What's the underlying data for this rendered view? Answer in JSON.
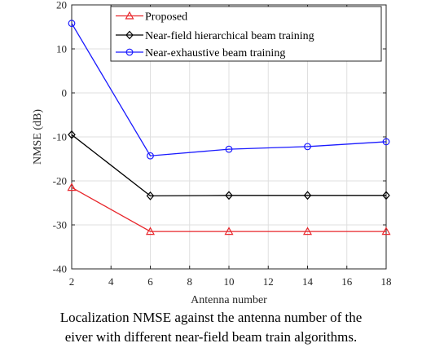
{
  "chart_data": {
    "type": "line",
    "xlabel": "Antenna number",
    "ylabel": "NMSE (dB)",
    "xlim": [
      2,
      18
    ],
    "ylim": [
      -40,
      20
    ],
    "xticks": [
      2,
      4,
      6,
      8,
      10,
      12,
      14,
      16,
      18
    ],
    "yticks": [
      -40,
      -30,
      -20,
      -10,
      0,
      10,
      20
    ],
    "grid": true,
    "legend_position": "top-right",
    "x": [
      2,
      6,
      10,
      14,
      18
    ],
    "series": [
      {
        "name": "Proposed",
        "color": "#e8262b",
        "marker": "triangle",
        "values": [
          -21.5,
          -31.5,
          -31.5,
          -31.5,
          -31.5
        ]
      },
      {
        "name": "Near-field hierarchical beam training",
        "color": "#000000",
        "marker": "diamond",
        "values": [
          -9.5,
          -23.4,
          -23.3,
          -23.3,
          -23.3
        ]
      },
      {
        "name": "Near-exhaustive beam training",
        "color": "#1a1aff",
        "marker": "circle",
        "values": [
          15.8,
          -14.3,
          -12.8,
          -12.2,
          -11.1
        ]
      }
    ]
  },
  "caption": {
    "line1": "Localization NMSE against the antenna number of the",
    "line2": "eiver with different near-field beam train algorithms."
  }
}
